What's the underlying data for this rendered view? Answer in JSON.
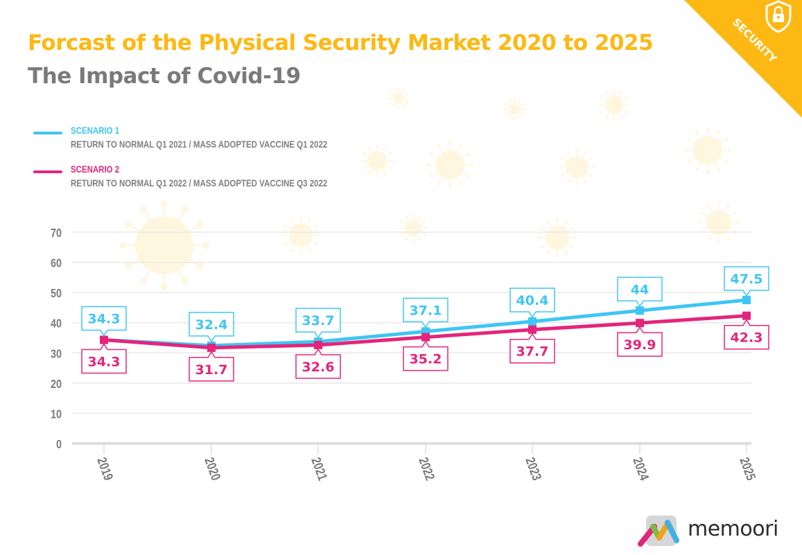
{
  "header": {
    "title": "Forcast of the Physical Security Market 2020 to 2025",
    "subtitle": "The Impact of Covid-19"
  },
  "corner_badge": {
    "label": "SECURITY",
    "icon": "shield-lock-icon",
    "color": "#FDB813"
  },
  "legend": [
    {
      "name": "SCENARIO 1",
      "description": "RETURN TO NORMAL Q1 2021 / MASS ADOPTED VACCINE Q1 2022",
      "color": "#3EC6F4"
    },
    {
      "name": "SCENARIO 2",
      "description": "RETURN TO NORMAL Q1 2022 / MASS ADOPTED VACCINE Q3 2022",
      "color": "#E3257B"
    }
  ],
  "logo": {
    "text": "memoori"
  },
  "chart_data": {
    "type": "line",
    "title": "Forcast of the Physical Security Market 2020 to 2025",
    "subtitle": "The Impact of Covid-19",
    "xlabel": "",
    "ylabel": "",
    "categories": [
      "2019",
      "2020",
      "2021",
      "2022",
      "2023",
      "2024",
      "2025"
    ],
    "ylim": [
      0,
      70
    ],
    "yticks": [
      0,
      10,
      20,
      30,
      40,
      50,
      60,
      70
    ],
    "ytick_labels": [
      "0",
      "10",
      "20",
      "30",
      "40",
      "50",
      "60",
      "70"
    ],
    "grid": true,
    "legend_position": "top-left",
    "series": [
      {
        "name": "SCENARIO 1",
        "color": "#3EC6F4",
        "values": [
          34.3,
          32.4,
          33.7,
          37.1,
          40.4,
          44,
          47.5
        ],
        "labels": [
          "34.3",
          "32.4",
          "33.7",
          "37.1",
          "40.4",
          "44",
          "47.5"
        ],
        "label_position": "above"
      },
      {
        "name": "SCENARIO 2",
        "color": "#E3257B",
        "values": [
          34.3,
          31.7,
          32.6,
          35.2,
          37.7,
          39.9,
          42.3
        ],
        "labels": [
          "34.3",
          "31.7",
          "32.6",
          "35.2",
          "37.7",
          "39.9",
          "42.3"
        ],
        "label_position": "below"
      }
    ]
  }
}
